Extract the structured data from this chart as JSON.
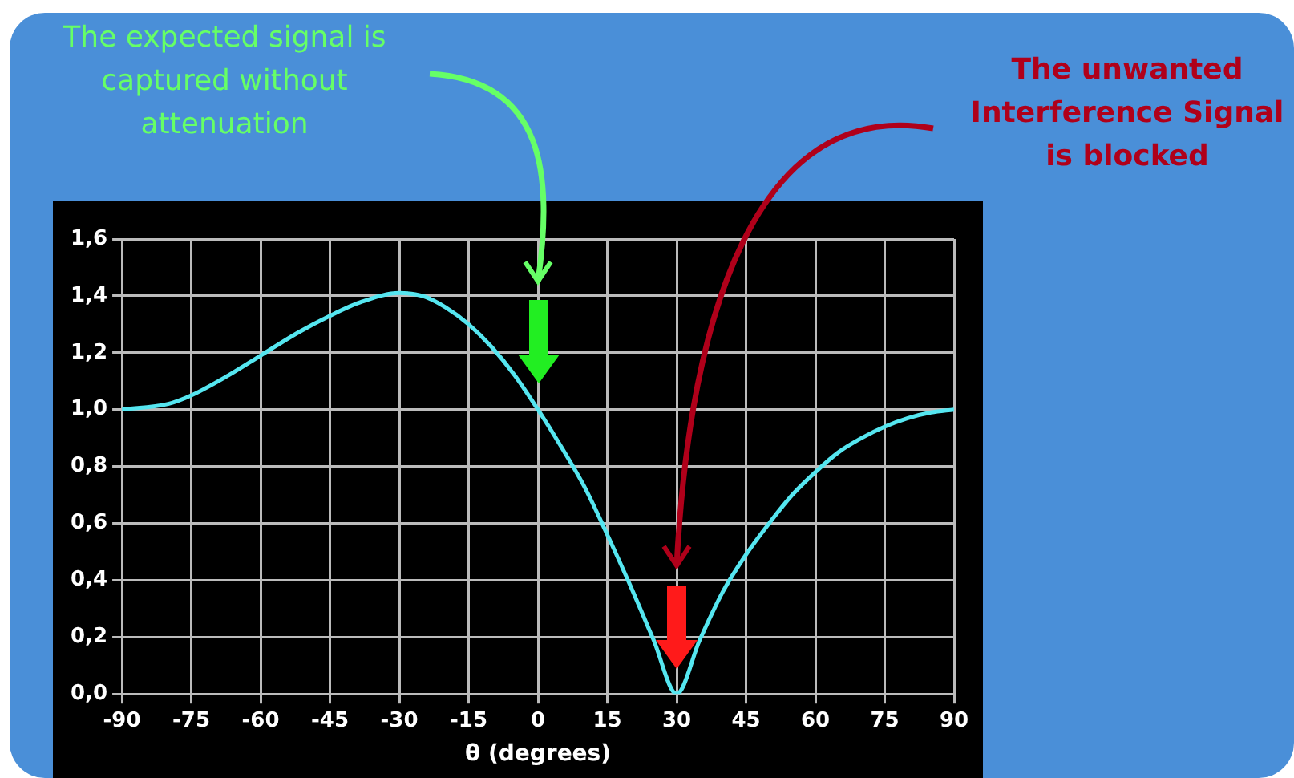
{
  "chart_data": {
    "type": "line",
    "xlabel": "θ (degrees)",
    "annotations": [
      "The expected signal is captured without attenuation",
      "The unwanted Interference Signal is blocked"
    ],
    "series": [
      {
        "color": "#55e6f0",
        "x": [
          -90,
          -80,
          -75,
          -67,
          -60,
          -52,
          -45,
          -38,
          -30,
          -25,
          -20,
          -15,
          -10,
          -5,
          0,
          5,
          10,
          15,
          20,
          25,
          30,
          35,
          40,
          45,
          50,
          55,
          60,
          65,
          70,
          75,
          80,
          85,
          90
        ],
        "values": [
          1.0,
          1.02,
          1.05,
          1.12,
          1.19,
          1.27,
          1.33,
          1.38,
          1.41,
          1.4,
          1.36,
          1.3,
          1.22,
          1.12,
          1.0,
          0.87,
          0.73,
          0.56,
          0.38,
          0.19,
          0.0,
          0.19,
          0.36,
          0.49,
          0.6,
          0.7,
          0.78,
          0.85,
          0.9,
          0.94,
          0.97,
          0.99,
          1.0
        ]
      }
    ],
    "xlim": [
      -90,
      90
    ],
    "xticks": [
      -90,
      -75,
      -60,
      -45,
      -30,
      -15,
      0,
      15,
      30,
      45,
      60,
      75,
      90
    ],
    "ylim": [
      0,
      1.6
    ],
    "yticks": [
      {
        "value": 0,
        "label": "0,0"
      },
      {
        "value": 0.2,
        "label": "0,2"
      },
      {
        "value": 0.4,
        "label": "0,4"
      },
      {
        "value": 0.6,
        "label": "0,6"
      },
      {
        "value": 0.8,
        "label": "0,8"
      },
      {
        "value": 1.0,
        "label": "1,0"
      },
      {
        "value": 1.2,
        "label": "1,2"
      },
      {
        "value": 1.4,
        "label": "1,4"
      },
      {
        "value": 1.6,
        "label": "1,6"
      }
    ],
    "grid": true,
    "legend": false,
    "marker": "none",
    "line_style": "solid"
  }
}
